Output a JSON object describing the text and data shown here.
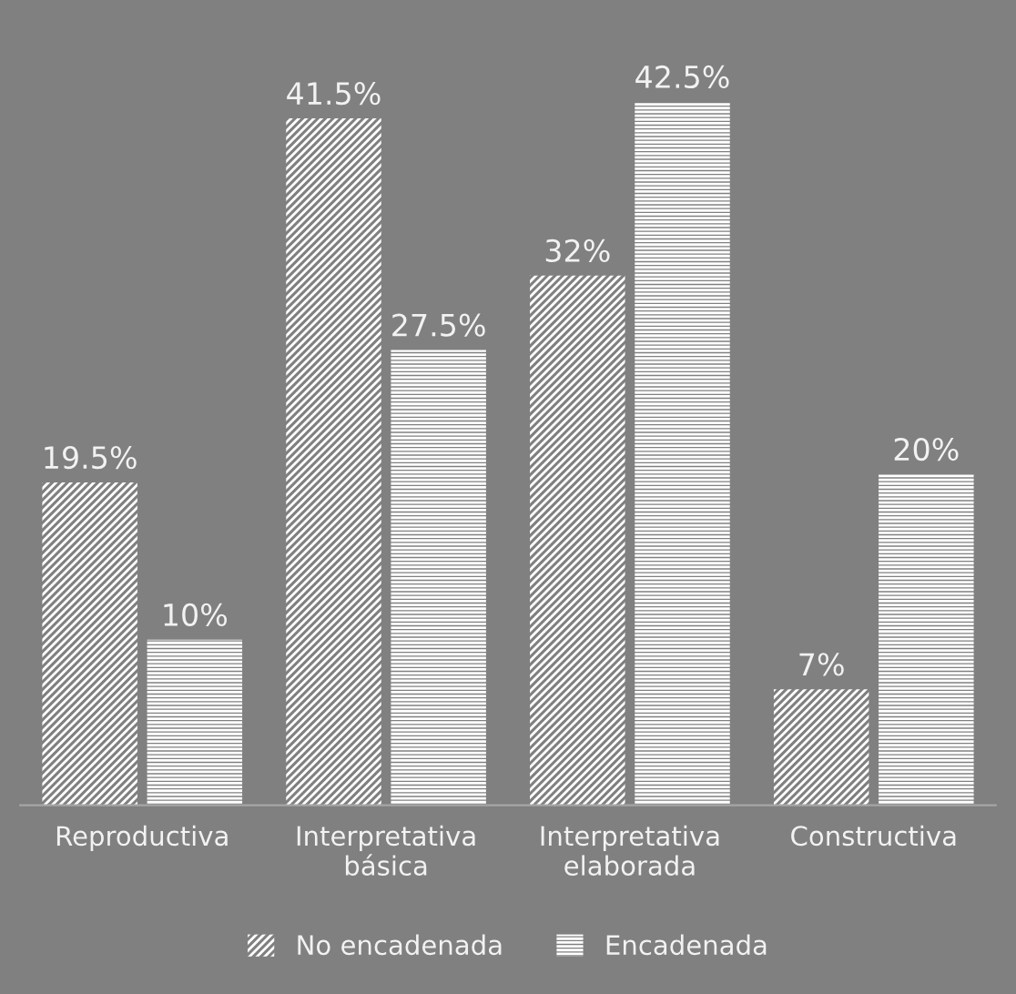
{
  "chart_data": {
    "type": "bar",
    "categories": [
      "Reproductiva",
      "Interpretativa\nbásica",
      "Interpretativa\nelaborada",
      "Constructiva"
    ],
    "series": [
      {
        "name": "No encadenada",
        "color": "#ffffff",
        "values": [
          19.5,
          41.5,
          32,
          7
        ],
        "value_labels": [
          "19.5%",
          "41.5%",
          "32%",
          "7%"
        ]
      },
      {
        "name": "Encadenada",
        "color": "#ffffff",
        "values": [
          10,
          27.5,
          42.5,
          20
        ],
        "value_labels": [
          "10%",
          "27.5%",
          "42.5%",
          "20%"
        ]
      }
    ],
    "legend": "bottom"
  }
}
